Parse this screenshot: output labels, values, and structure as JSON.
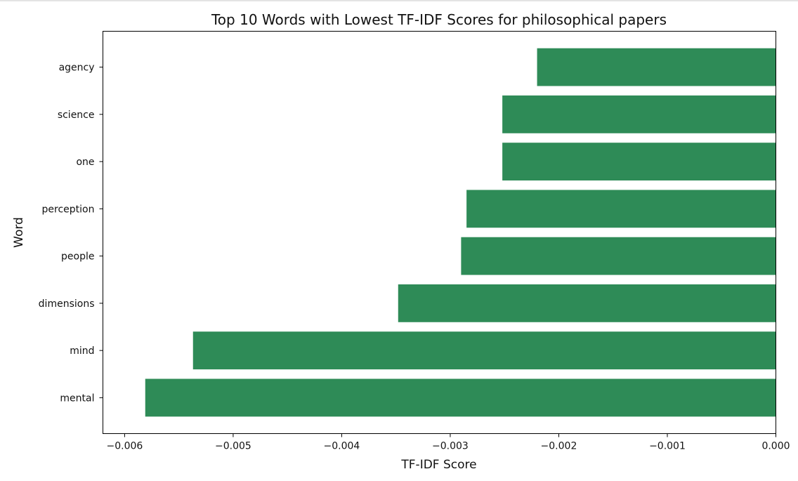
{
  "chart_data": {
    "type": "bar",
    "orientation": "horizontal",
    "title": "Top 10 Words with Lowest TF-IDF Scores for philosophical papers",
    "xlabel": "TF-IDF Score",
    "ylabel": "Word",
    "categories": [
      "mental",
      "mind",
      "dimensions",
      "people",
      "perception",
      "one",
      "science",
      "agency"
    ],
    "values": [
      -0.00581,
      -0.00537,
      -0.00348,
      -0.0029,
      -0.00285,
      -0.00252,
      -0.00252,
      -0.0022
    ],
    "xlim": [
      -0.0062,
      0.0
    ],
    "xticks": [
      -0.006,
      -0.005,
      -0.004,
      -0.003,
      -0.002,
      -0.001,
      0.0
    ],
    "xtick_labels": [
      "−0.006",
      "−0.005",
      "−0.004",
      "−0.003",
      "−0.002",
      "−0.001",
      "0.000"
    ],
    "grid": false,
    "colors": {
      "bar": "#2e8b57",
      "axis": "#000000",
      "text": "#111111"
    }
  }
}
